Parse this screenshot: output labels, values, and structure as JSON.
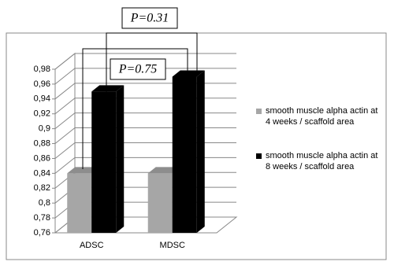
{
  "chart_data": {
    "type": "bar3d",
    "categories": [
      "ADSC",
      "MDSC"
    ],
    "series": [
      {
        "name": "smooth muscle alpha actin at 4 weeks / scaffold area",
        "color": "#a6a6a6",
        "values": [
          0.84,
          0.84
        ]
      },
      {
        "name": "smooth muscle alpha actin at 8 weeks / scaffold area",
        "color": "#000000",
        "values": [
          0.95,
          0.97
        ]
      }
    ],
    "ylim": [
      0.76,
      0.98
    ],
    "yticks": [
      {
        "value": 0.76,
        "label": "0,76"
      },
      {
        "value": 0.78,
        "label": "0,78"
      },
      {
        "value": 0.8,
        "label": "0,8"
      },
      {
        "value": 0.82,
        "label": "0,82"
      },
      {
        "value": 0.84,
        "label": "0,84"
      },
      {
        "value": 0.86,
        "label": "0,86"
      },
      {
        "value": 0.88,
        "label": "0,88"
      },
      {
        "value": 0.9,
        "label": "0,9"
      },
      {
        "value": 0.92,
        "label": "0,92"
      },
      {
        "value": 0.94,
        "label": "0,94"
      },
      {
        "value": 0.96,
        "label": "0,96"
      },
      {
        "value": 0.98,
        "label": "0,98"
      }
    ],
    "grid": true,
    "legend": "right",
    "annotations": [
      "P=0.31",
      "P=0.75"
    ]
  }
}
